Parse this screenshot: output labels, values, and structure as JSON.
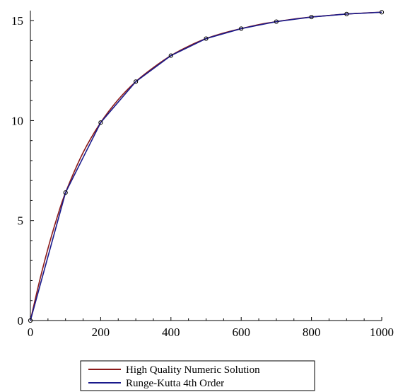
{
  "chart_data": {
    "type": "line",
    "title": "",
    "xlabel": "",
    "ylabel": "",
    "xlim": [
      0,
      1000
    ],
    "ylim": [
      0,
      15.5
    ],
    "x_ticks": [
      0,
      200,
      400,
      600,
      800,
      1000
    ],
    "y_ticks": [
      0,
      5,
      10,
      15
    ],
    "x_tick_labels": [
      "0",
      "200",
      "400",
      "600",
      "800",
      "1000"
    ],
    "y_tick_labels": [
      "0",
      "5",
      "10",
      "15"
    ],
    "grid": false,
    "legend_position": "bottom-center",
    "series": [
      {
        "name": "High Quality Numeric Solution",
        "color": "#8b1a1a",
        "style": "smooth",
        "markers": false,
        "x": [
          0,
          25,
          50,
          75,
          100,
          150,
          200,
          250,
          300,
          350,
          400,
          450,
          500,
          550,
          600,
          650,
          700,
          750,
          800,
          850,
          900,
          950,
          1000
        ],
        "y": [
          0,
          1.9,
          3.6,
          5.1,
          6.4,
          8.4,
          9.9,
          11.05,
          11.95,
          12.65,
          13.25,
          13.72,
          14.1,
          14.38,
          14.6,
          14.8,
          14.95,
          15.08,
          15.18,
          15.26,
          15.33,
          15.38,
          15.42
        ]
      },
      {
        "name": "Runge-Kutta 4th Order",
        "color": "#1a1a8b",
        "style": "segments",
        "markers": true,
        "x": [
          0,
          100,
          200,
          300,
          400,
          500,
          600,
          700,
          800,
          900,
          1000
        ],
        "y": [
          0,
          6.4,
          9.9,
          11.95,
          13.25,
          14.1,
          14.6,
          14.95,
          15.18,
          15.33,
          15.42
        ]
      }
    ]
  }
}
